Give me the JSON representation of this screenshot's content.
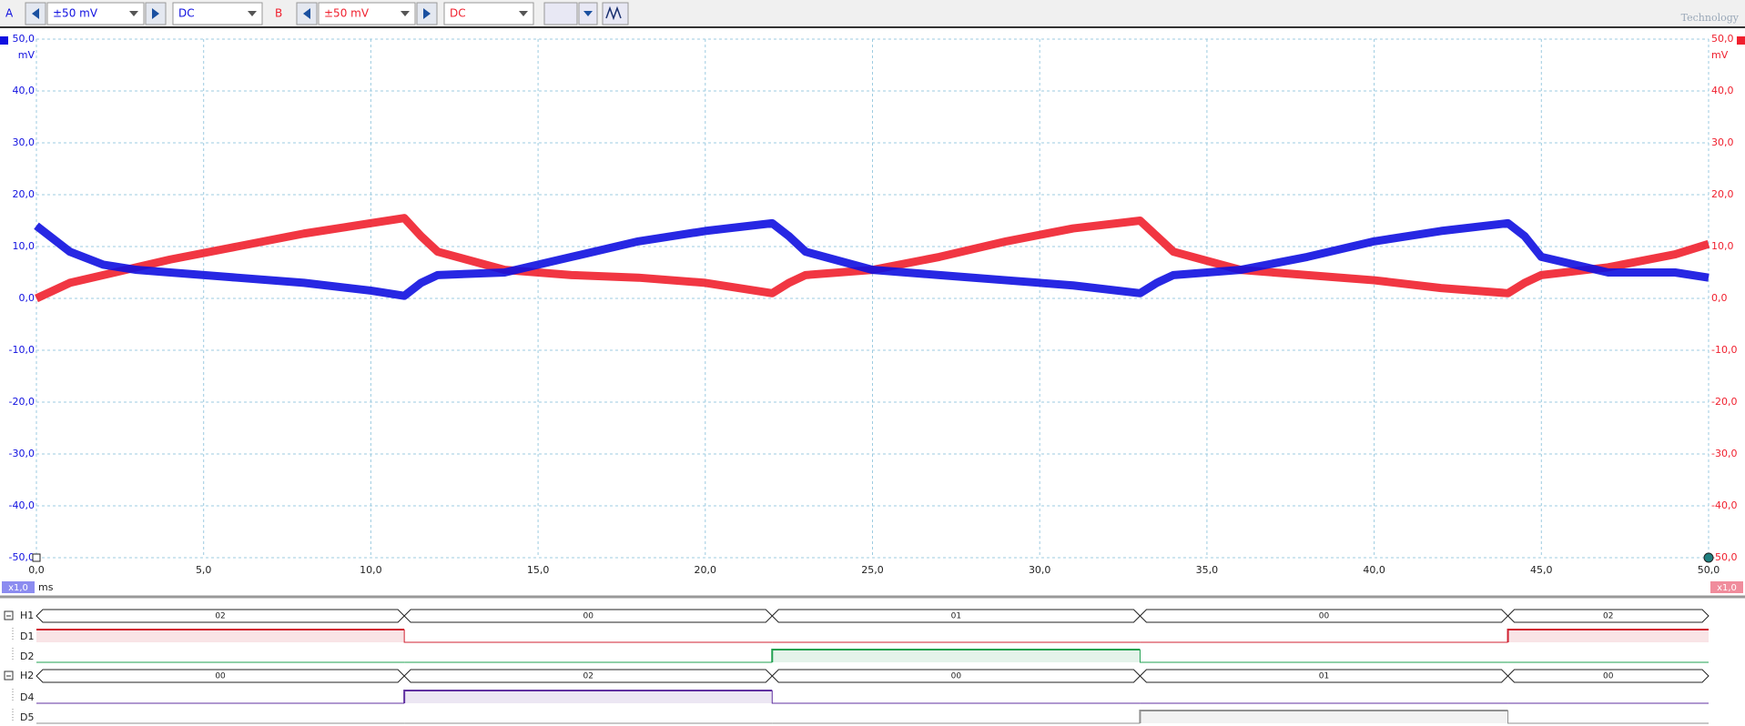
{
  "toolbar": {
    "channel_a": {
      "range": "±50 mV",
      "coupling": "DC"
    },
    "channel_b": {
      "range": "±50 mV",
      "coupling": "DC"
    },
    "logo": "Technology"
  },
  "chart_data": {
    "type": "line",
    "x_unit": "ms",
    "y_unit": "mV",
    "y2_unit": "mV",
    "x_scale_label": "x1,0",
    "y2_scale_label": "x1,0",
    "grid": true,
    "xlim": [
      0,
      50
    ],
    "ylim": [
      -50,
      50
    ],
    "y2lim": [
      -50,
      50
    ],
    "xticks": [
      {
        "value": 0,
        "label": "0,0"
      },
      {
        "value": 5,
        "label": "5,0"
      },
      {
        "value": 10,
        "label": "10,0"
      },
      {
        "value": 15,
        "label": "15,0"
      },
      {
        "value": 20,
        "label": "20,0"
      },
      {
        "value": 25,
        "label": "25,0"
      },
      {
        "value": 30,
        "label": "30,0"
      },
      {
        "value": 35,
        "label": "35,0"
      },
      {
        "value": 40,
        "label": "40,0"
      },
      {
        "value": 45,
        "label": "45,0"
      },
      {
        "value": 50,
        "label": "50,0"
      }
    ],
    "yticks": [
      {
        "value": 50,
        "label": "50,0"
      },
      {
        "value": 40,
        "label": "40,0"
      },
      {
        "value": 30,
        "label": "30,0"
      },
      {
        "value": 20,
        "label": "20,0"
      },
      {
        "value": 10,
        "label": "10,0"
      },
      {
        "value": 0,
        "label": "0,0"
      },
      {
        "value": -10,
        "label": "-10,0"
      },
      {
        "value": -20,
        "label": "-20,0"
      },
      {
        "value": -30,
        "label": "-30,0"
      },
      {
        "value": -40,
        "label": "-40,0"
      },
      {
        "value": -50,
        "label": "-50,0"
      }
    ],
    "y2ticks": [
      {
        "value": 50,
        "label": "50,0"
      },
      {
        "value": 40,
        "label": "40,0"
      },
      {
        "value": 30,
        "label": "30,0"
      },
      {
        "value": 20,
        "label": "20,0"
      },
      {
        "value": 10,
        "label": "10,0"
      },
      {
        "value": 0,
        "label": "0,0"
      },
      {
        "value": -10,
        "label": "-10,0"
      },
      {
        "value": -20,
        "label": "-20,0"
      },
      {
        "value": -30,
        "label": "-30,0"
      },
      {
        "value": -40,
        "label": "-40,0"
      },
      {
        "value": -50,
        "label": "-50,0"
      }
    ],
    "x": [
      0,
      1,
      2,
      3,
      4,
      6,
      8,
      10,
      11,
      11.5,
      12,
      14,
      16,
      18,
      20,
      22,
      22.5,
      23,
      25,
      27,
      29,
      31,
      33,
      33.5,
      34,
      36,
      38,
      40,
      42,
      44,
      44.5,
      45,
      47,
      49,
      50
    ],
    "series": [
      {
        "name": "A",
        "color": "#1010e0",
        "values": [
          14,
          9,
          6.5,
          5.5,
          5,
          4,
          3,
          1.5,
          0.5,
          3,
          4.5,
          5,
          8,
          11,
          13,
          14.5,
          12,
          9,
          5.5,
          4.5,
          3.5,
          2.5,
          1,
          3,
          4.5,
          5.5,
          8,
          11,
          13,
          14.5,
          12,
          8,
          5,
          5,
          4
        ]
      },
      {
        "name": "B",
        "color": "#f0202e",
        "axis": "y2",
        "values": [
          0,
          3,
          4.5,
          6,
          7.5,
          10,
          12.5,
          14.5,
          15.5,
          12,
          9,
          5.5,
          4.5,
          4,
          3,
          1,
          3,
          4.5,
          5.5,
          8,
          11,
          13.5,
          15,
          12,
          9,
          5.5,
          4.5,
          3.5,
          2,
          1,
          3,
          4.5,
          6,
          8.5,
          10.5
        ]
      }
    ]
  },
  "digital": {
    "rows": [
      {
        "name": "H1",
        "kind": "bus",
        "edges": [
          0,
          11,
          22,
          33,
          44,
          50
        ],
        "values": [
          "02",
          "00",
          "01",
          "00",
          "02"
        ]
      },
      {
        "name": "D1",
        "kind": "line",
        "color": "#d02030",
        "edges": [
          0,
          11,
          22,
          33,
          44,
          50
        ],
        "levels": [
          1,
          0,
          0,
          0,
          1
        ]
      },
      {
        "name": "D2",
        "kind": "line",
        "color": "#20a050",
        "edges": [
          0,
          11,
          22,
          33,
          44,
          50
        ],
        "levels": [
          0,
          0,
          1,
          0,
          0
        ]
      },
      {
        "name": "H2",
        "kind": "bus",
        "edges": [
          0,
          11,
          22,
          33,
          44,
          50
        ],
        "values": [
          "00",
          "02",
          "00",
          "01",
          "00"
        ]
      },
      {
        "name": "D4",
        "kind": "line",
        "color": "#6030a0",
        "edges": [
          0,
          11,
          22,
          33,
          44,
          50
        ],
        "levels": [
          0,
          1,
          0,
          0,
          0
        ]
      },
      {
        "name": "D5",
        "kind": "line",
        "color": "#909090",
        "edges": [
          0,
          11,
          22,
          33,
          44,
          50
        ],
        "levels": [
          0,
          0,
          0,
          1,
          0
        ]
      }
    ]
  }
}
